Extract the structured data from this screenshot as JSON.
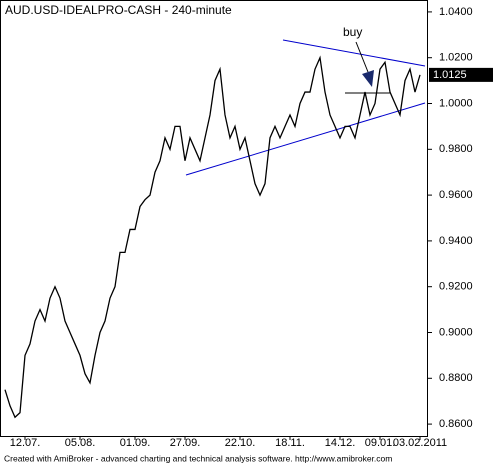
{
  "chart_data": {
    "type": "line",
    "title": "AUD.USD-IDEALPRO-CASH - 240-minute",
    "footer": "Created with AmiBroker - advanced charting and technical analysis software. http://www.amibroker.com",
    "annotations": [
      "buy"
    ],
    "categories": [
      null,
      null,
      null,
      null,
      "12.07.",
      null,
      null,
      null,
      null,
      null,
      null,
      null,
      null,
      null,
      null,
      "05.08.",
      null,
      null,
      null,
      null,
      null,
      null,
      null,
      null,
      null,
      null,
      "01.09.",
      null,
      null,
      null,
      null,
      null,
      null,
      null,
      null,
      null,
      "27.09.",
      null,
      null,
      null,
      null,
      null,
      null,
      null,
      null,
      null,
      null,
      "22.10.",
      null,
      null,
      null,
      null,
      null,
      null,
      null,
      null,
      null,
      "18.11.",
      null,
      null,
      null,
      null,
      null,
      null,
      null,
      null,
      null,
      "14.12.",
      null,
      null,
      null,
      null,
      null,
      null,
      null,
      "09.01.",
      null,
      null,
      null,
      null,
      null,
      null,
      null,
      "03.02.2011"
    ],
    "values": [
      0.875,
      0.868,
      0.863,
      0.865,
      0.89,
      0.895,
      0.905,
      0.91,
      0.905,
      0.915,
      0.92,
      0.915,
      0.905,
      0.9,
      0.895,
      0.89,
      0.882,
      0.878,
      0.89,
      0.9,
      0.905,
      0.915,
      0.92,
      0.935,
      0.935,
      0.945,
      0.945,
      0.955,
      0.958,
      0.96,
      0.97,
      0.975,
      0.985,
      0.98,
      0.99,
      0.99,
      0.975,
      0.985,
      0.98,
      0.975,
      0.985,
      0.995,
      1.01,
      1.015,
      0.995,
      0.985,
      0.99,
      0.98,
      0.985,
      0.975,
      0.965,
      0.96,
      0.965,
      0.985,
      0.99,
      0.985,
      0.99,
      0.995,
      0.99,
      1.0,
      1.005,
      1.005,
      1.015,
      1.02,
      1.005,
      0.995,
      0.99,
      0.985,
      0.99,
      0.99,
      0.985,
      0.995,
      1.005,
      0.995,
      1.0,
      1.015,
      1.018,
      1.005,
      1.0,
      0.995,
      1.01,
      1.015,
      1.005,
      1.0125
    ],
    "color": "#000000",
    "last_label": {
      "value": 1.0125,
      "label": "1.0125"
    },
    "ylim": [
      0.8548,
      1.0452
    ],
    "yticks": [
      {
        "value": 0.86,
        "label": "0.8600"
      },
      {
        "value": 0.88,
        "label": "0.8800"
      },
      {
        "value": 0.9,
        "label": "0.9000"
      },
      {
        "value": 0.92,
        "label": "0.9200"
      },
      {
        "value": 0.94,
        "label": "0.9400"
      },
      {
        "value": 0.96,
        "label": "0.9600"
      },
      {
        "value": 0.98,
        "label": "0.9800"
      },
      {
        "value": 1.0,
        "label": "1.0000"
      },
      {
        "value": 1.02,
        "label": "1.0200"
      },
      {
        "value": 1.04,
        "label": "1.0400"
      }
    ]
  }
}
